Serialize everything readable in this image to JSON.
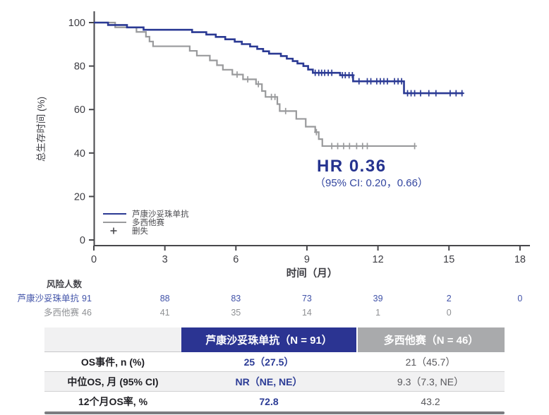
{
  "colors": {
    "primary_blue": "#2b3a94",
    "gray_series": "#999a9c",
    "axis": "#47474b",
    "tick_text": "#3c3c42",
    "legend_text": "#4a4a4e",
    "risk_blue": "#4052a8",
    "risk_gray": "#8f9194",
    "risk_title": "#44444a",
    "header_blue_bg": "#2b3492",
    "header_gray_bg": "#a9aaac",
    "hr_text": "#25338f",
    "ci_text": "#32459f"
  },
  "chart_data": {
    "type": "line",
    "subtype": "kaplan_meier_step",
    "title": "",
    "xlabel": "时间（月）",
    "ylabel": "总生存时间 (%)",
    "xlim": [
      0,
      18
    ],
    "ylim": [
      0,
      100
    ],
    "x_ticks": [
      0,
      3,
      6,
      9,
      12,
      15,
      18
    ],
    "y_ticks": [
      100,
      80,
      60,
      40,
      20,
      0
    ],
    "grid": false,
    "legend_position": "lower-left",
    "annotation": {
      "line1": "HR 0.36",
      "line2": "（95% CI: 0.20，0.66）"
    },
    "legend": [
      {
        "label": "芦康沙妥珠单抗",
        "marker": "line",
        "color": "#2b3a94"
      },
      {
        "label": "多西他赛",
        "marker": "line",
        "color": "#999a9c"
      },
      {
        "label": "删失",
        "marker": "plus",
        "color": "#4a4a4e"
      }
    ],
    "series": [
      {
        "id": "lukangshatuozhu",
        "name": "芦康沙妥珠单抗",
        "color": "#2b3a94",
        "start": [
          0,
          100
        ],
        "end_x": 15.6,
        "steps": [
          [
            0.6,
            98.9
          ],
          [
            1.4,
            97.8
          ],
          [
            2.1,
            96.7
          ],
          [
            4.15,
            95.6
          ],
          [
            4.75,
            94.5
          ],
          [
            5.15,
            93.4
          ],
          [
            5.55,
            92.3
          ],
          [
            5.95,
            91.2
          ],
          [
            6.25,
            90.1
          ],
          [
            6.6,
            89.0
          ],
          [
            6.9,
            87.9
          ],
          [
            7.15,
            86.8
          ],
          [
            7.4,
            85.7
          ],
          [
            7.9,
            84.6
          ],
          [
            8.15,
            83.4
          ],
          [
            8.4,
            82.3
          ],
          [
            8.6,
            81.2
          ],
          [
            8.85,
            80.0
          ],
          [
            9.05,
            78.4
          ],
          [
            9.25,
            76.9
          ],
          [
            10.4,
            75.8
          ],
          [
            10.95,
            73.0
          ],
          [
            13.1,
            67.5
          ]
        ],
        "censors": [
          [
            9.35,
            76.9
          ],
          [
            9.5,
            76.9
          ],
          [
            9.62,
            76.9
          ],
          [
            9.75,
            76.9
          ],
          [
            9.9,
            76.9
          ],
          [
            10.05,
            76.9
          ],
          [
            10.5,
            75.8
          ],
          [
            10.62,
            75.8
          ],
          [
            10.78,
            75.8
          ],
          [
            10.92,
            75.8
          ],
          [
            11.2,
            73.0
          ],
          [
            11.55,
            73.0
          ],
          [
            11.7,
            73.0
          ],
          [
            11.95,
            73.0
          ],
          [
            12.1,
            73.0
          ],
          [
            12.25,
            73.0
          ],
          [
            12.4,
            73.0
          ],
          [
            12.7,
            73.0
          ],
          [
            12.85,
            73.0
          ],
          [
            13.0,
            73.0
          ],
          [
            13.25,
            67.5
          ],
          [
            13.4,
            67.5
          ],
          [
            13.55,
            67.5
          ],
          [
            13.8,
            67.5
          ],
          [
            14.15,
            67.5
          ],
          [
            14.45,
            67.5
          ],
          [
            15.05,
            67.5
          ],
          [
            15.3,
            67.5
          ],
          [
            15.55,
            67.5
          ]
        ]
      },
      {
        "id": "docetaxel",
        "name": "多西他赛",
        "color": "#999a9c",
        "start": [
          0,
          100
        ],
        "end_x": 13.55,
        "steps": [
          [
            0.9,
            97.8
          ],
          [
            1.8,
            95.7
          ],
          [
            2.2,
            93.5
          ],
          [
            2.35,
            91.3
          ],
          [
            2.5,
            89.1
          ],
          [
            4.05,
            87.0
          ],
          [
            4.35,
            84.8
          ],
          [
            4.9,
            82.6
          ],
          [
            5.2,
            80.4
          ],
          [
            5.45,
            78.3
          ],
          [
            5.85,
            76.1
          ],
          [
            6.3,
            73.9
          ],
          [
            6.85,
            71.7
          ],
          [
            7.1,
            68.5
          ],
          [
            7.25,
            65.8
          ],
          [
            7.75,
            62.5
          ],
          [
            7.85,
            59.3
          ],
          [
            8.55,
            55.7
          ],
          [
            8.95,
            52.1
          ],
          [
            9.35,
            49.6
          ],
          [
            9.5,
            46.4
          ],
          [
            9.65,
            43.2
          ]
        ],
        "censors": [
          [
            6.05,
            76.1
          ],
          [
            6.5,
            73.9
          ],
          [
            6.95,
            71.7
          ],
          [
            7.5,
            65.8
          ],
          [
            7.65,
            65.8
          ],
          [
            8.1,
            59.3
          ],
          [
            9.4,
            49.6
          ],
          [
            10.05,
            43.2
          ],
          [
            10.3,
            43.2
          ],
          [
            10.55,
            43.2
          ],
          [
            10.8,
            43.2
          ],
          [
            11.1,
            43.2
          ],
          [
            11.35,
            43.2
          ],
          [
            11.55,
            43.2
          ],
          [
            13.55,
            43.2
          ]
        ]
      }
    ]
  },
  "risk_table": {
    "title": "风险人数",
    "rows": [
      {
        "label": "芦康沙妥珠单抗",
        "color": "#4052a8",
        "times": [
          0,
          3,
          6,
          9,
          12,
          15,
          18
        ],
        "values": [
          "91",
          "88",
          "83",
          "73",
          "39",
          "2",
          "0"
        ]
      },
      {
        "label": "多西他赛",
        "color": "#8f9194",
        "times": [
          0,
          3,
          6,
          9,
          12,
          15
        ],
        "values": [
          "46",
          "41",
          "35",
          "14",
          "1",
          "0"
        ]
      }
    ]
  },
  "summary_table": {
    "headers": {
      "blank": "",
      "col1": "芦康沙妥珠单抗（N = 91）",
      "col2": "多西他赛（N = 46）"
    },
    "rows": [
      {
        "label": "OS事件, n (%)",
        "col1": "25（27.5）",
        "col2": "21（45.7）"
      },
      {
        "label": "中位OS, 月 (95% CI)",
        "col1": "NR（NE, NE）",
        "col2": "9.3（7.3, NE）"
      },
      {
        "label": "12个月OS率, %",
        "col1": "72.8",
        "col2": "43.2"
      }
    ]
  }
}
